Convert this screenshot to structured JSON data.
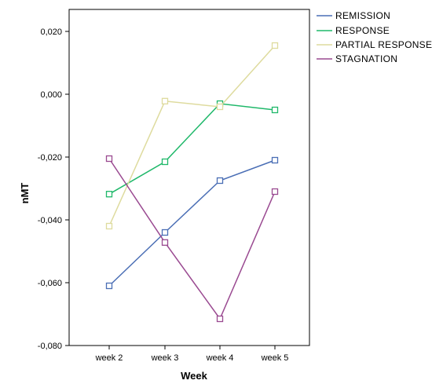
{
  "chart_data": {
    "type": "line",
    "xlabel": "Week",
    "ylabel": "nMT",
    "categories": [
      "week 2",
      "week 3",
      "week 4",
      "week 5"
    ],
    "ylim": [
      -0.08,
      0.027
    ],
    "yticks": [
      0.02,
      0.0,
      -0.02,
      -0.04,
      -0.06,
      -0.08
    ],
    "ytick_labels": [
      "0,020",
      "0,000",
      "-0,020",
      "-0,040",
      "-0,060",
      "-0,080"
    ],
    "grid": false,
    "legend_position": "right",
    "series": [
      {
        "name": "REMISSION",
        "color": "#4a6eb5",
        "values": [
          -0.061,
          -0.044,
          -0.0275,
          -0.021
        ]
      },
      {
        "name": "RESPONSE",
        "color": "#1fb86a",
        "values": [
          -0.0318,
          -0.0215,
          -0.003,
          -0.005
        ]
      },
      {
        "name": "PARTIAL RESPONSE",
        "color": "#dedb9e",
        "values": [
          -0.042,
          -0.0022,
          -0.004,
          0.0155
        ]
      },
      {
        "name": "STAGNATION",
        "color": "#9a4a91",
        "values": [
          -0.0205,
          -0.0472,
          -0.0715,
          -0.031
        ]
      }
    ]
  }
}
